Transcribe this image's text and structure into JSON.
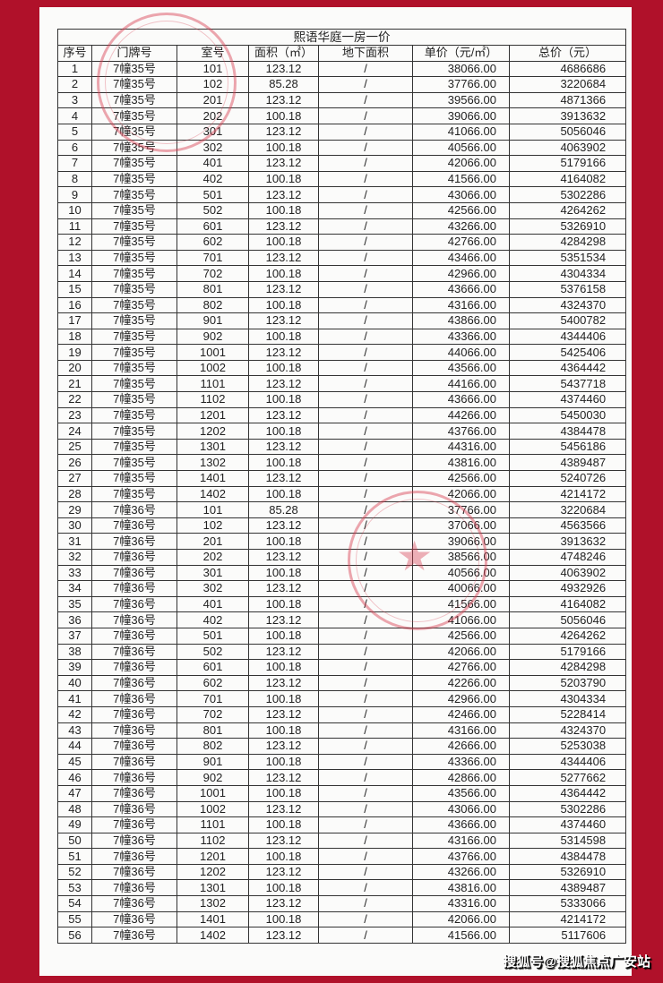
{
  "title": "熙语华庭一房一价",
  "columns": [
    "序号",
    "门牌号",
    "室号",
    "面积（㎡）",
    "地下面积",
    "单价（元/㎡）",
    "总价（元）"
  ],
  "rows": [
    [
      "1",
      "7幢35号",
      "101",
      "123.12",
      "/",
      "38066.00",
      "4686686"
    ],
    [
      "2",
      "7幢35号",
      "102",
      "85.28",
      "/",
      "37766.00",
      "3220684"
    ],
    [
      "3",
      "7幢35号",
      "201",
      "123.12",
      "/",
      "39566.00",
      "4871366"
    ],
    [
      "4",
      "7幢35号",
      "202",
      "100.18",
      "/",
      "39066.00",
      "3913632"
    ],
    [
      "5",
      "7幢35号",
      "301",
      "123.12",
      "/",
      "41066.00",
      "5056046"
    ],
    [
      "6",
      "7幢35号",
      "302",
      "100.18",
      "/",
      "40566.00",
      "4063902"
    ],
    [
      "7",
      "7幢35号",
      "401",
      "123.12",
      "/",
      "42066.00",
      "5179166"
    ],
    [
      "8",
      "7幢35号",
      "402",
      "100.18",
      "/",
      "41566.00",
      "4164082"
    ],
    [
      "9",
      "7幢35号",
      "501",
      "123.12",
      "/",
      "43066.00",
      "5302286"
    ],
    [
      "10",
      "7幢35号",
      "502",
      "100.18",
      "/",
      "42566.00",
      "4264262"
    ],
    [
      "11",
      "7幢35号",
      "601",
      "123.12",
      "/",
      "43266.00",
      "5326910"
    ],
    [
      "12",
      "7幢35号",
      "602",
      "100.18",
      "/",
      "42766.00",
      "4284298"
    ],
    [
      "13",
      "7幢35号",
      "701",
      "123.12",
      "/",
      "43466.00",
      "5351534"
    ],
    [
      "14",
      "7幢35号",
      "702",
      "100.18",
      "/",
      "42966.00",
      "4304334"
    ],
    [
      "15",
      "7幢35号",
      "801",
      "123.12",
      "/",
      "43666.00",
      "5376158"
    ],
    [
      "16",
      "7幢35号",
      "802",
      "100.18",
      "/",
      "43166.00",
      "4324370"
    ],
    [
      "17",
      "7幢35号",
      "901",
      "123.12",
      "/",
      "43866.00",
      "5400782"
    ],
    [
      "18",
      "7幢35号",
      "902",
      "100.18",
      "/",
      "43366.00",
      "4344406"
    ],
    [
      "19",
      "7幢35号",
      "1001",
      "123.12",
      "/",
      "44066.00",
      "5425406"
    ],
    [
      "20",
      "7幢35号",
      "1002",
      "100.18",
      "/",
      "43566.00",
      "4364442"
    ],
    [
      "21",
      "7幢35号",
      "1101",
      "123.12",
      "/",
      "44166.00",
      "5437718"
    ],
    [
      "22",
      "7幢35号",
      "1102",
      "100.18",
      "/",
      "43666.00",
      "4374460"
    ],
    [
      "23",
      "7幢35号",
      "1201",
      "123.12",
      "/",
      "44266.00",
      "5450030"
    ],
    [
      "24",
      "7幢35号",
      "1202",
      "100.18",
      "/",
      "43766.00",
      "4384478"
    ],
    [
      "25",
      "7幢35号",
      "1301",
      "123.12",
      "/",
      "44316.00",
      "5456186"
    ],
    [
      "26",
      "7幢35号",
      "1302",
      "100.18",
      "/",
      "43816.00",
      "4389487"
    ],
    [
      "27",
      "7幢35号",
      "1401",
      "123.12",
      "/",
      "42566.00",
      "5240726"
    ],
    [
      "28",
      "7幢35号",
      "1402",
      "100.18",
      "/",
      "42066.00",
      "4214172"
    ],
    [
      "29",
      "7幢36号",
      "101",
      "85.28",
      "/",
      "37766.00",
      "3220684"
    ],
    [
      "30",
      "7幢36号",
      "102",
      "123.12",
      "/",
      "37066.00",
      "4563566"
    ],
    [
      "31",
      "7幢36号",
      "201",
      "100.18",
      "/",
      "39066.00",
      "3913632"
    ],
    [
      "32",
      "7幢36号",
      "202",
      "123.12",
      "/",
      "38566.00",
      "4748246"
    ],
    [
      "33",
      "7幢36号",
      "301",
      "100.18",
      "/",
      "40566.00",
      "4063902"
    ],
    [
      "34",
      "7幢36号",
      "302",
      "123.12",
      "/",
      "40066.00",
      "4932926"
    ],
    [
      "35",
      "7幢36号",
      "401",
      "100.18",
      "/",
      "41566.00",
      "4164082"
    ],
    [
      "36",
      "7幢36号",
      "402",
      "123.12",
      "/",
      "41066.00",
      "5056046"
    ],
    [
      "37",
      "7幢36号",
      "501",
      "100.18",
      "/",
      "42566.00",
      "4264262"
    ],
    [
      "38",
      "7幢36号",
      "502",
      "123.12",
      "/",
      "42066.00",
      "5179166"
    ],
    [
      "39",
      "7幢36号",
      "601",
      "100.18",
      "/",
      "42766.00",
      "4284298"
    ],
    [
      "40",
      "7幢36号",
      "602",
      "123.12",
      "/",
      "42266.00",
      "5203790"
    ],
    [
      "41",
      "7幢36号",
      "701",
      "100.18",
      "/",
      "42966.00",
      "4304334"
    ],
    [
      "42",
      "7幢36号",
      "702",
      "123.12",
      "/",
      "42466.00",
      "5228414"
    ],
    [
      "43",
      "7幢36号",
      "801",
      "100.18",
      "/",
      "43166.00",
      "4324370"
    ],
    [
      "44",
      "7幢36号",
      "802",
      "123.12",
      "/",
      "42666.00",
      "5253038"
    ],
    [
      "45",
      "7幢36号",
      "901",
      "100.18",
      "/",
      "43366.00",
      "4344406"
    ],
    [
      "46",
      "7幢36号",
      "902",
      "123.12",
      "/",
      "42866.00",
      "5277662"
    ],
    [
      "47",
      "7幢36号",
      "1001",
      "100.18",
      "/",
      "43566.00",
      "4364442"
    ],
    [
      "48",
      "7幢36号",
      "1002",
      "123.12",
      "/",
      "43066.00",
      "5302286"
    ],
    [
      "49",
      "7幢36号",
      "1101",
      "100.18",
      "/",
      "43666.00",
      "4374460"
    ],
    [
      "50",
      "7幢36号",
      "1102",
      "123.12",
      "/",
      "43166.00",
      "5314598"
    ],
    [
      "51",
      "7幢36号",
      "1201",
      "100.18",
      "/",
      "43766.00",
      "4384478"
    ],
    [
      "52",
      "7幢36号",
      "1202",
      "123.12",
      "/",
      "43266.00",
      "5326910"
    ],
    [
      "53",
      "7幢36号",
      "1301",
      "100.18",
      "/",
      "43816.00",
      "4389487"
    ],
    [
      "54",
      "7幢36号",
      "1302",
      "123.12",
      "/",
      "43316.00",
      "5333066"
    ],
    [
      "55",
      "7幢36号",
      "1401",
      "100.18",
      "/",
      "42066.00",
      "4214172"
    ],
    [
      "56",
      "7幢36号",
      "1402",
      "123.12",
      "/",
      "41566.00",
      "5117606"
    ]
  ],
  "watermark": "搜狐号@搜狐焦点广安站",
  "colors": {
    "background": "#b0112a",
    "stamp": "#d73c50"
  }
}
